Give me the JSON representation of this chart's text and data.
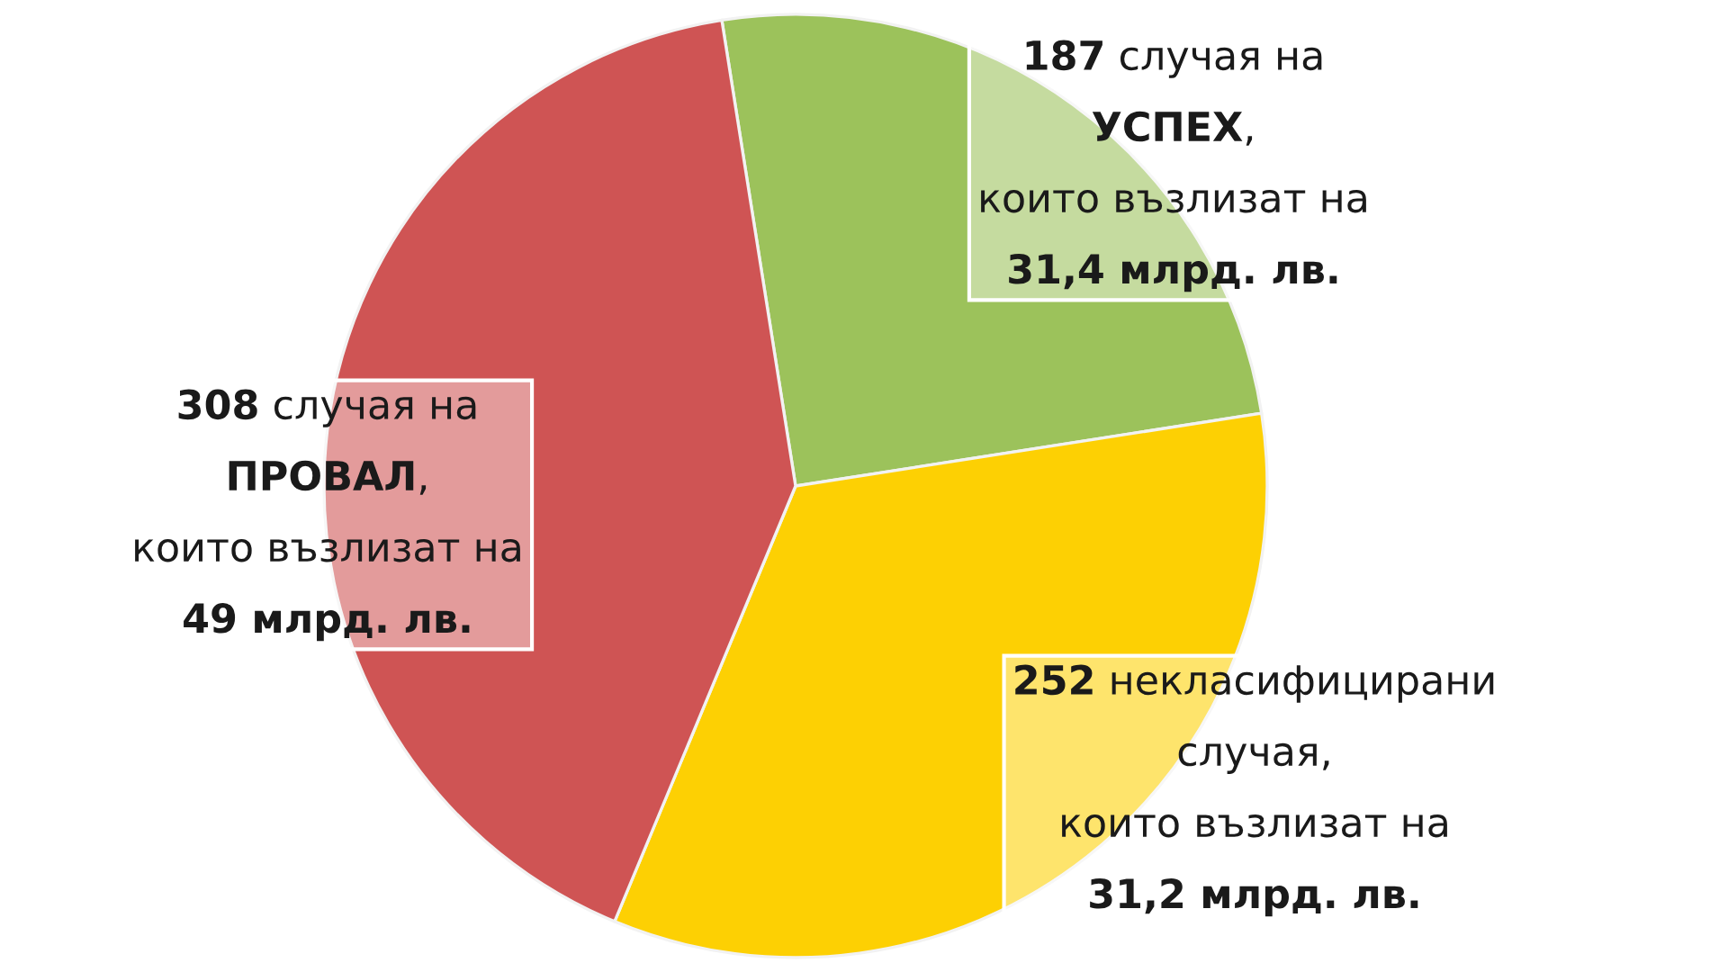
{
  "chart_data": {
    "type": "pie",
    "categories": [
      null,
      null,
      null
    ],
    "values": [
      187,
      252,
      308
    ],
    "colors": [
      "#9cc25b",
      "#fdd003",
      "#cf5454"
    ],
    "value_labels": [
      "187 случая на\nУСПЕХ,\nкоито възлизат на\n31,4 млрд. лв.",
      "252 некласифицирани\nслучая,\nкоито възлизат на\n31,2 млрд. лв.",
      "308 случая на\nПРОВАЛ,\nкоито възлизат на\n49 млрд. лв."
    ]
  }
}
